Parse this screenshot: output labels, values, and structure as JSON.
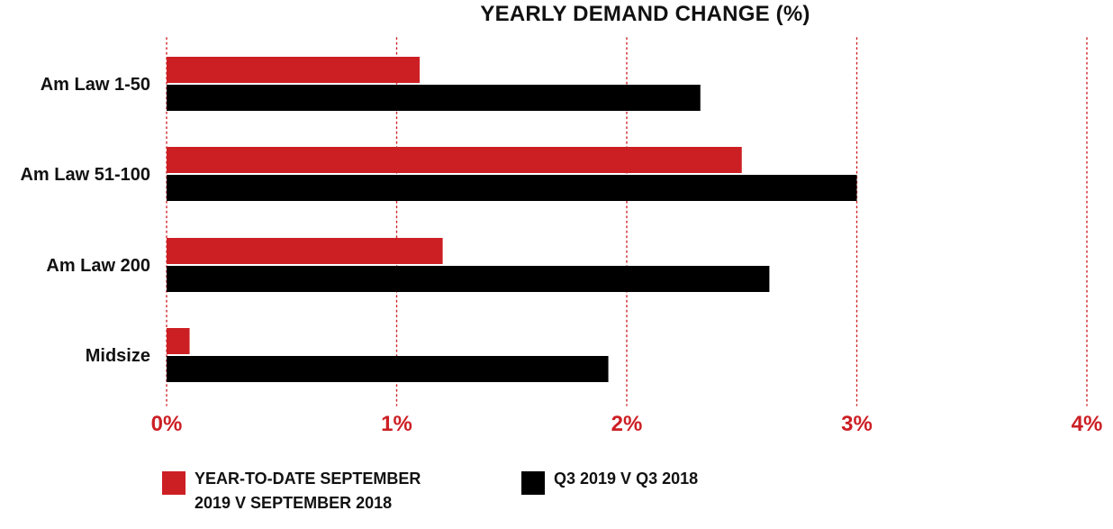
{
  "chart_data": {
    "type": "bar",
    "orientation": "horizontal",
    "title": "YEARLY DEMAND CHANGE (%)",
    "categories": [
      "Am Law 1-50",
      "Am Law 51-100",
      "Am Law 200",
      "Midsize"
    ],
    "series": [
      {
        "name": "YEAR-TO-DATE SEPTEMBER 2019 V SEPTEMBER 2018",
        "color": "#cc1f24",
        "values": [
          1.1,
          2.5,
          1.2,
          0.1
        ]
      },
      {
        "name": "Q3 2019 V Q3 2018",
        "color": "#000000",
        "values": [
          2.32,
          3.0,
          2.62,
          1.92
        ]
      }
    ],
    "xlim": [
      0,
      4
    ],
    "x_ticks": [
      "0%",
      "1%",
      "2%",
      "3%",
      "4%"
    ],
    "grid": "vertical-dotted",
    "grid_color": "#cc1f24",
    "tick_label_color": "#cc1f24",
    "legend_position": "bottom"
  },
  "legend": {
    "items": [
      {
        "label": "YEAR-TO-DATE SEPTEMBER\n2019 V SEPTEMBER 2018",
        "color": "#cc1f24"
      },
      {
        "label": "Q3 2019 V Q3 2018",
        "color": "#000000"
      }
    ]
  }
}
